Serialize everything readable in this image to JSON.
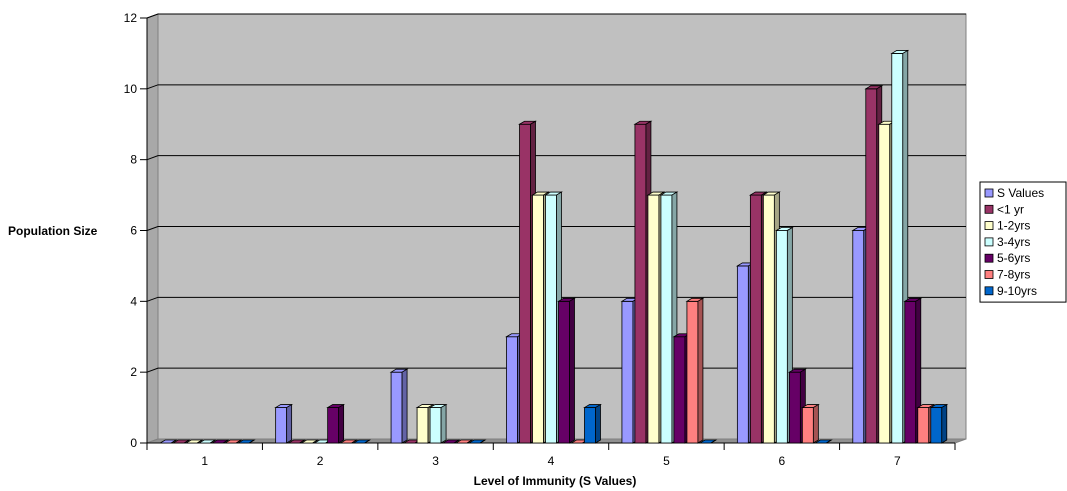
{
  "chart_data": {
    "type": "bar",
    "title": "",
    "xlabel": "Level of Immunity (S Values)",
    "ylabel": "Population Size",
    "categories": [
      "1",
      "2",
      "3",
      "4",
      "5",
      "6",
      "7"
    ],
    "ylim": [
      0,
      12
    ],
    "yticks": [
      "0",
      "2",
      "4",
      "6",
      "8",
      "10",
      "12"
    ],
    "grid": true,
    "legend_position": "right",
    "series": [
      {
        "name": "S Values",
        "color": "#9999ff",
        "values": [
          0,
          1,
          2,
          3,
          4,
          5,
          6
        ]
      },
      {
        "name": "<1 yr",
        "color": "#993366",
        "values": [
          0,
          0,
          0,
          9,
          9,
          7,
          10
        ]
      },
      {
        "name": "1-2yrs",
        "color": "#ffffcc",
        "values": [
          0,
          0,
          1,
          7,
          7,
          7,
          9
        ]
      },
      {
        "name": "3-4yrs",
        "color": "#ccffff",
        "values": [
          0,
          0,
          1,
          7,
          7,
          6,
          11
        ]
      },
      {
        "name": "5-6yrs",
        "color": "#660066",
        "values": [
          0,
          1,
          0,
          4,
          3,
          2,
          4
        ]
      },
      {
        "name": "7-8yrs",
        "color": "#ff8080",
        "values": [
          0,
          0,
          0,
          0,
          4,
          1,
          1
        ]
      },
      {
        "name": "9-10yrs",
        "color": "#0066cc",
        "values": [
          0,
          0,
          0,
          1,
          0,
          0,
          1
        ]
      }
    ]
  }
}
